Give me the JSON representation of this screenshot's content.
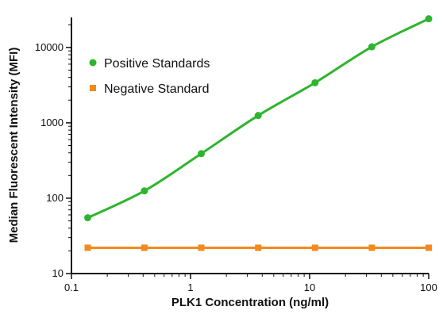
{
  "chart_data": {
    "type": "line",
    "xlabel": "PLK1 Concentration (ng/ml)",
    "ylabel": "Median Fluorescent Intensity (MFI)",
    "xscale": "log",
    "yscale": "log",
    "xlim": [
      0.1,
      100
    ],
    "ylim": [
      10,
      25000
    ],
    "xticks": [
      0.1,
      1,
      10,
      100
    ],
    "xtick_labels": [
      "0.1",
      "1",
      "10",
      "100"
    ],
    "yticks": [
      10,
      100,
      1000,
      10000
    ],
    "ytick_labels": [
      "10",
      "100",
      "1000",
      "10000"
    ],
    "grid": false,
    "legend_position": "top-left",
    "series": [
      {
        "name": "Positive Standards",
        "color": "#2db52d",
        "marker": "circle",
        "x": [
          0.137,
          0.41,
          1.23,
          3.7,
          11.1,
          33.3,
          100
        ],
        "y": [
          55,
          125,
          390,
          1250,
          3400,
          10200,
          24000
        ]
      },
      {
        "name": "Negative Standard",
        "color": "#f28a1e",
        "marker": "square",
        "x": [
          0.137,
          0.41,
          1.23,
          3.7,
          11.1,
          33.3,
          100
        ],
        "y": [
          22,
          22,
          22,
          22,
          22,
          22,
          22
        ]
      }
    ]
  }
}
